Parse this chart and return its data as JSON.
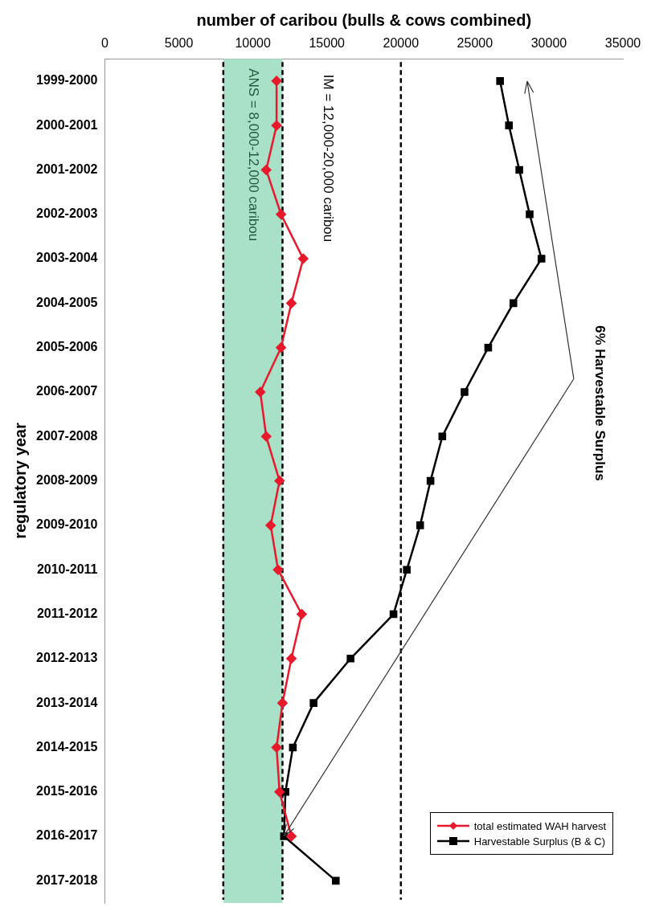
{
  "chart_data": {
    "type": "line",
    "orientation": "horizontal",
    "xlabel": "number of caribou (bulls & cows combined)",
    "ylabel": "regulatory year",
    "categories": [
      "1999-2000",
      "2000-2001",
      "2001-2002",
      "2002-2003",
      "2003-2004",
      "2004-2005",
      "2005-2006",
      "2006-2007",
      "2007-2008",
      "2008-2009",
      "2009-2010",
      "2010-2011",
      "2011-2012",
      "2012-2013",
      "2013-2014",
      "2014-2015",
      "2015-2016",
      "2016-2017",
      "2017-2018"
    ],
    "series": [
      {
        "name": "total estimated WAH harvest",
        "color": "#e8192c",
        "marker": "diamond",
        "values": [
          11600,
          11600,
          10900,
          11900,
          13400,
          12600,
          11900,
          10500,
          10900,
          11800,
          11200,
          11700,
          13300,
          12600,
          12000,
          11600,
          11800,
          12600,
          null
        ]
      },
      {
        "name": "Harvestable Surplus (B & C)",
        "color": "#000000",
        "marker": "square",
        "values": [
          26700,
          27300,
          28000,
          28700,
          29500,
          27600,
          25900,
          24300,
          22800,
          22000,
          21300,
          20400,
          19500,
          16600,
          14100,
          12700,
          12200,
          12100,
          15600
        ]
      }
    ],
    "xlim": [
      0,
      35000
    ],
    "xticks": [
      0,
      5000,
      10000,
      15000,
      20000,
      25000,
      30000,
      35000
    ],
    "bands": [
      {
        "axis": "x",
        "from": 8000,
        "to": 12000,
        "label": "ANS = 8,000-12,000 caribou",
        "color": "#a8e0c8"
      }
    ],
    "ref_lines": [
      {
        "axis": "x",
        "value": 8000,
        "color": "#000000",
        "line_style": "dashed"
      },
      {
        "axis": "x",
        "value": 12000,
        "color": "#000000",
        "line_style": "dashed"
      },
      {
        "axis": "x",
        "value": 20000,
        "color": "#000000",
        "line_style": "dashed"
      }
    ],
    "annotations": [
      "IM = 12,000-20,000 caribou",
      "6% Harvestable Surplus"
    ],
    "grid": false,
    "legend": "bottom right",
    "line_style": "solid"
  }
}
